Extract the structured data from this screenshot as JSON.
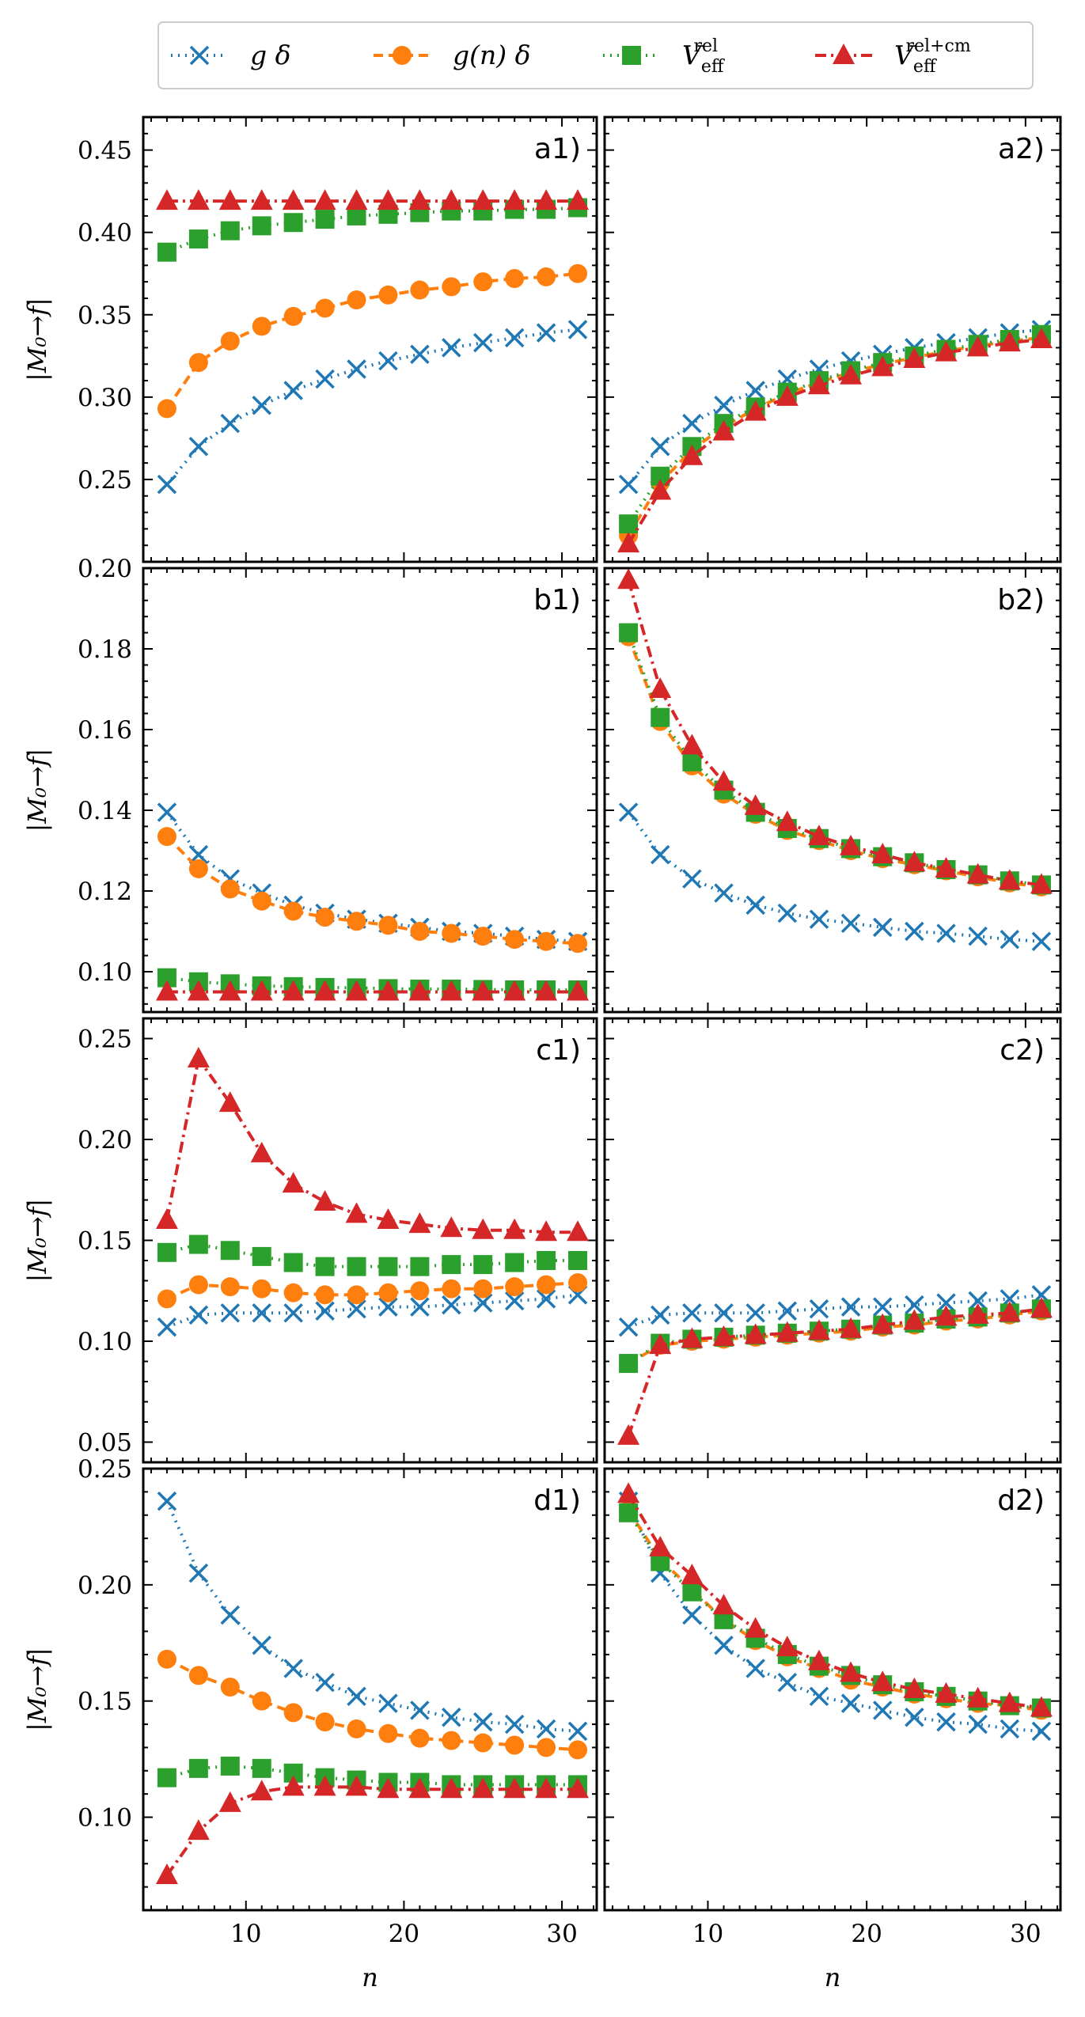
{
  "chart_data": {
    "type": "line",
    "x_label": "n",
    "y_label": "|M₀→f|",
    "xlim": [
      3.5,
      32.2
    ],
    "x_ticks": [
      10,
      20,
      30
    ],
    "x_tick_labels": [
      "10",
      "20",
      "30"
    ],
    "x": [
      5,
      7,
      9,
      11,
      13,
      15,
      17,
      19,
      21,
      23,
      25,
      27,
      29,
      31
    ],
    "legend": {
      "position": "top-center",
      "entries": [
        {
          "id": "gd",
          "main": "g δ",
          "sup": ""
        },
        {
          "id": "gnd",
          "main": "g(n) δ",
          "sup": ""
        },
        {
          "id": "vrel",
          "main": "V",
          "sub": "eff",
          "sup": "rel"
        },
        {
          "id": "vrelcm",
          "main": "V",
          "sub": "eff",
          "sup": "rel+cm"
        }
      ]
    },
    "series_styles": {
      "gd": {
        "name": "g δ",
        "color": "#1f77b4",
        "marker": "x",
        "dash": "dotted"
      },
      "gnd": {
        "name": "g(n) δ",
        "color": "#ff7f0e",
        "marker": "circle",
        "dash": "dashed"
      },
      "vrel": {
        "name": "V_eff^rel",
        "color": "#2ca02c",
        "marker": "square",
        "dash": "dotted"
      },
      "vrelcm": {
        "name": "V_eff^rel+cm",
        "color": "#d62728",
        "marker": "triangle",
        "dash": "dashdot"
      }
    },
    "rows": [
      {
        "ylim": [
          0.2,
          0.47
        ],
        "y_ticks": [
          0.25,
          0.3,
          0.35,
          0.4,
          0.45
        ],
        "y_tick_labels": [
          "0.25",
          "0.30",
          "0.35",
          "0.40",
          "0.45"
        ],
        "panels": [
          {
            "label": "a1)",
            "series": {
              "gd": [
                0.247,
                0.27,
                0.284,
                0.295,
                0.304,
                0.311,
                0.317,
                0.322,
                0.326,
                0.33,
                0.333,
                0.336,
                0.339,
                0.341
              ],
              "gnd": [
                0.293,
                0.321,
                0.334,
                0.343,
                0.349,
                0.354,
                0.359,
                0.362,
                0.365,
                0.367,
                0.37,
                0.372,
                0.373,
                0.375
              ],
              "vrel": [
                0.388,
                0.396,
                0.401,
                0.404,
                0.406,
                0.408,
                0.41,
                0.411,
                0.412,
                0.413,
                0.413,
                0.414,
                0.414,
                0.415
              ],
              "vrelcm": [
                0.419,
                0.419,
                0.419,
                0.419,
                0.419,
                0.419,
                0.419,
                0.419,
                0.419,
                0.419,
                0.419,
                0.419,
                0.419,
                0.419
              ]
            }
          },
          {
            "label": "a2)",
            "series": {
              "gd": [
                0.247,
                0.27,
                0.284,
                0.295,
                0.304,
                0.311,
                0.317,
                0.322,
                0.326,
                0.33,
                0.333,
                0.336,
                0.339,
                0.341
              ],
              "gnd": [
                0.216,
                0.248,
                0.268,
                0.282,
                0.293,
                0.302,
                0.309,
                0.315,
                0.32,
                0.324,
                0.328,
                0.331,
                0.334,
                0.336
              ],
              "vrel": [
                0.223,
                0.252,
                0.27,
                0.284,
                0.294,
                0.303,
                0.31,
                0.316,
                0.321,
                0.325,
                0.329,
                0.332,
                0.335,
                0.338
              ],
              "vrelcm": [
                0.211,
                0.243,
                0.264,
                0.279,
                0.291,
                0.3,
                0.307,
                0.313,
                0.318,
                0.323,
                0.327,
                0.33,
                0.333,
                0.335
              ]
            }
          }
        ]
      },
      {
        "ylim": [
          0.09,
          0.2
        ],
        "y_ticks": [
          0.1,
          0.12,
          0.14,
          0.16,
          0.18,
          0.2
        ],
        "y_tick_labels": [
          "0.10",
          "0.12",
          "0.14",
          "0.16",
          "0.18",
          "0.20"
        ],
        "panels": [
          {
            "label": "b1)",
            "series": {
              "gd": [
                0.1395,
                0.129,
                0.123,
                0.1195,
                0.1165,
                0.1145,
                0.113,
                0.112,
                0.111,
                0.11,
                0.1095,
                0.1088,
                0.108,
                0.1075
              ],
              "gnd": [
                0.1335,
                0.1255,
                0.1205,
                0.1175,
                0.115,
                0.1135,
                0.1125,
                0.1115,
                0.11,
                0.1095,
                0.1088,
                0.108,
                0.1075,
                0.107
              ],
              "vrel": [
                0.0985,
                0.0975,
                0.097,
                0.0965,
                0.0963,
                0.0961,
                0.096,
                0.0958,
                0.0957,
                0.0957,
                0.0956,
                0.0955,
                0.0955,
                0.0955
              ],
              "vrelcm": [
                0.095,
                0.095,
                0.095,
                0.095,
                0.095,
                0.095,
                0.095,
                0.095,
                0.095,
                0.095,
                0.095,
                0.095,
                0.095,
                0.095
              ]
            }
          },
          {
            "label": "b2)",
            "series": {
              "gd": [
                0.1395,
                0.129,
                0.123,
                0.1195,
                0.1165,
                0.1145,
                0.113,
                0.112,
                0.111,
                0.11,
                0.1095,
                0.1088,
                0.108,
                0.1075
              ],
              "gnd": [
                0.183,
                0.162,
                0.151,
                0.144,
                0.139,
                0.135,
                0.1325,
                0.13,
                0.128,
                0.1265,
                0.125,
                0.1235,
                0.122,
                0.121
              ],
              "vrel": [
                0.184,
                0.163,
                0.152,
                0.145,
                0.1395,
                0.1355,
                0.133,
                0.1305,
                0.1285,
                0.127,
                0.1253,
                0.124,
                0.1225,
                0.1215
              ],
              "vrelcm": [
                0.197,
                0.17,
                0.156,
                0.147,
                0.141,
                0.137,
                0.1335,
                0.131,
                0.129,
                0.127,
                0.1255,
                0.124,
                0.1225,
                0.1215
              ]
            }
          }
        ]
      },
      {
        "ylim": [
          0.04,
          0.26
        ],
        "y_ticks": [
          0.05,
          0.1,
          0.15,
          0.2,
          0.25
        ],
        "y_tick_labels": [
          "0.05",
          "0.10",
          "0.15",
          "0.20",
          "0.25"
        ],
        "panels": [
          {
            "label": "c1)",
            "series": {
              "gd": [
                0.107,
                0.113,
                0.114,
                0.114,
                0.114,
                0.115,
                0.116,
                0.117,
                0.117,
                0.118,
                0.119,
                0.12,
                0.121,
                0.123
              ],
              "gnd": [
                0.121,
                0.128,
                0.127,
                0.126,
                0.124,
                0.123,
                0.123,
                0.124,
                0.125,
                0.126,
                0.126,
                0.127,
                0.128,
                0.129
              ],
              "vrel": [
                0.144,
                0.148,
                0.145,
                0.142,
                0.139,
                0.137,
                0.137,
                0.137,
                0.137,
                0.138,
                0.138,
                0.139,
                0.14,
                0.14
              ],
              "vrelcm": [
                0.16,
                0.24,
                0.218,
                0.193,
                0.178,
                0.169,
                0.163,
                0.16,
                0.158,
                0.156,
                0.155,
                0.155,
                0.154,
                0.154
              ]
            }
          },
          {
            "label": "c2)",
            "series": {
              "gd": [
                0.107,
                0.113,
                0.114,
                0.114,
                0.114,
                0.115,
                0.116,
                0.117,
                0.117,
                0.118,
                0.119,
                0.12,
                0.121,
                0.123
              ],
              "gnd": [
                0.089,
                0.098,
                0.1,
                0.101,
                0.102,
                0.103,
                0.104,
                0.105,
                0.107,
                0.108,
                0.11,
                0.111,
                0.113,
                0.115
              ],
              "vrel": [
                0.089,
                0.099,
                0.101,
                0.102,
                0.103,
                0.104,
                0.105,
                0.106,
                0.108,
                0.109,
                0.111,
                0.112,
                0.114,
                0.116
              ],
              "vrelcm": [
                0.053,
                0.098,
                0.101,
                0.102,
                0.103,
                0.104,
                0.105,
                0.106,
                0.108,
                0.11,
                0.112,
                0.113,
                0.114,
                0.116
              ]
            }
          }
        ]
      },
      {
        "ylim": [
          0.06,
          0.25
        ],
        "y_ticks": [
          0.1,
          0.15,
          0.2,
          0.25
        ],
        "y_tick_labels": [
          "0.10",
          "0.15",
          "0.20",
          "0.25"
        ],
        "panels": [
          {
            "label": "d1)",
            "series": {
              "gd": [
                0.236,
                0.205,
                0.187,
                0.174,
                0.164,
                0.158,
                0.152,
                0.149,
                0.146,
                0.143,
                0.141,
                0.14,
                0.138,
                0.137
              ],
              "gnd": [
                0.168,
                0.161,
                0.156,
                0.15,
                0.145,
                0.141,
                0.138,
                0.136,
                0.134,
                0.133,
                0.132,
                0.131,
                0.13,
                0.129
              ],
              "vrel": [
                0.117,
                0.121,
                0.122,
                0.121,
                0.119,
                0.117,
                0.116,
                0.115,
                0.115,
                0.114,
                0.114,
                0.114,
                0.114,
                0.114
              ],
              "vrelcm": [
                0.075,
                0.094,
                0.106,
                0.111,
                0.113,
                0.113,
                0.113,
                0.112,
                0.112,
                0.112,
                0.112,
                0.112,
                0.112,
                0.112
              ]
            }
          },
          {
            "label": "d2)",
            "series": {
              "gd": [
                0.236,
                0.205,
                0.187,
                0.174,
                0.164,
                0.158,
                0.152,
                0.149,
                0.146,
                0.143,
                0.141,
                0.14,
                0.138,
                0.137
              ],
              "gnd": [
                0.232,
                0.211,
                0.198,
                0.185,
                0.176,
                0.169,
                0.164,
                0.159,
                0.156,
                0.153,
                0.151,
                0.149,
                0.148,
                0.146
              ],
              "vrel": [
                0.231,
                0.21,
                0.197,
                0.185,
                0.177,
                0.17,
                0.165,
                0.161,
                0.157,
                0.154,
                0.152,
                0.15,
                0.148,
                0.147
              ],
              "vrelcm": [
                0.239,
                0.216,
                0.204,
                0.191,
                0.181,
                0.173,
                0.167,
                0.162,
                0.158,
                0.155,
                0.153,
                0.151,
                0.149,
                0.147
              ]
            }
          }
        ]
      }
    ]
  }
}
